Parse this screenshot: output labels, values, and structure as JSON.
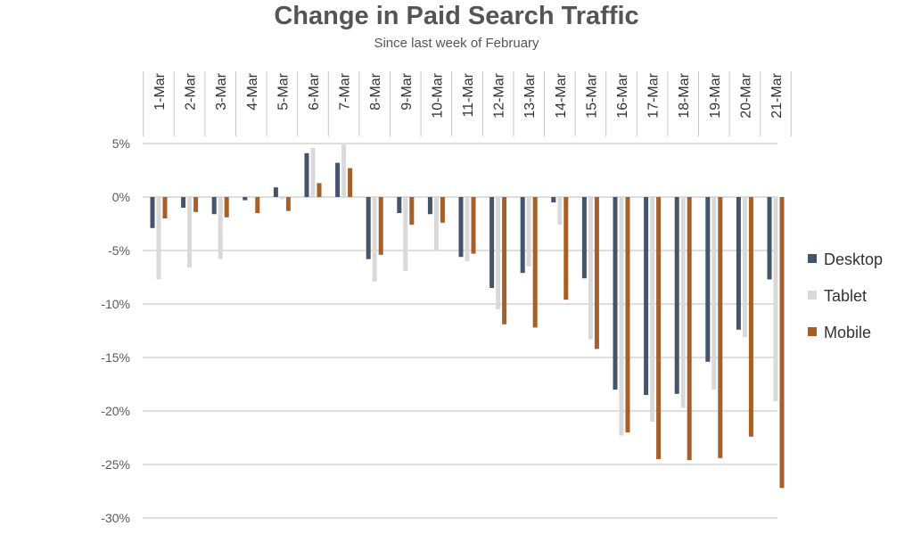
{
  "chart_data": {
    "type": "bar",
    "title": "Change in Paid Search Traffic",
    "subtitle": "Since last week of February",
    "xlabel": "",
    "ylabel": "",
    "categories": [
      "1-Mar",
      "2-Mar",
      "3-Mar",
      "4-Mar",
      "5-Mar",
      "6-Mar",
      "7-Mar",
      "8-Mar",
      "9-Mar",
      "10-Mar",
      "11-Mar",
      "12-Mar",
      "13-Mar",
      "14-Mar",
      "15-Mar",
      "16-Mar",
      "17-Mar",
      "18-Mar",
      "19-Mar",
      "20-Mar",
      "21-Mar"
    ],
    "series": [
      {
        "name": "Desktop",
        "color": "#44546a",
        "values": [
          -2.9,
          -1.0,
          -1.6,
          -0.3,
          0.9,
          4.1,
          3.2,
          -5.8,
          -1.5,
          -1.6,
          -5.6,
          -8.5,
          -7.1,
          -0.5,
          -7.6,
          -18.0,
          -18.5,
          -18.4,
          -15.4,
          -12.4,
          -7.7
        ]
      },
      {
        "name": "Tablet",
        "color": "#d9d9d9",
        "values": [
          -7.7,
          -6.6,
          -5.8,
          0.0,
          -0.2,
          4.6,
          4.9,
          -7.9,
          -6.9,
          -5.0,
          -6.0,
          -10.5,
          -6.5,
          -2.6,
          -13.3,
          -22.3,
          -21.0,
          -19.7,
          -18.0,
          -13.1,
          -19.1
        ]
      },
      {
        "name": "Mobile",
        "color": "#a65f28",
        "values": [
          -2.0,
          -1.4,
          -1.9,
          -1.5,
          -1.3,
          1.3,
          2.7,
          -5.4,
          -2.6,
          -2.4,
          -5.3,
          -11.9,
          -12.2,
          -9.6,
          -14.2,
          -22.0,
          -24.5,
          -24.6,
          -24.4,
          -22.4,
          -27.2
        ]
      }
    ],
    "ylim": [
      -30,
      5
    ],
    "yticks": [
      5,
      0,
      -5,
      -10,
      -15,
      -20,
      -25,
      -30
    ],
    "ytick_labels": [
      "5%",
      "0%",
      "-5%",
      "-10%",
      "-15%",
      "-20%",
      "-25%",
      "-30%"
    ],
    "x_tick_position": "top",
    "x_tick_rotation": "vertical",
    "grid": "horizontal",
    "legend_position": "right"
  }
}
